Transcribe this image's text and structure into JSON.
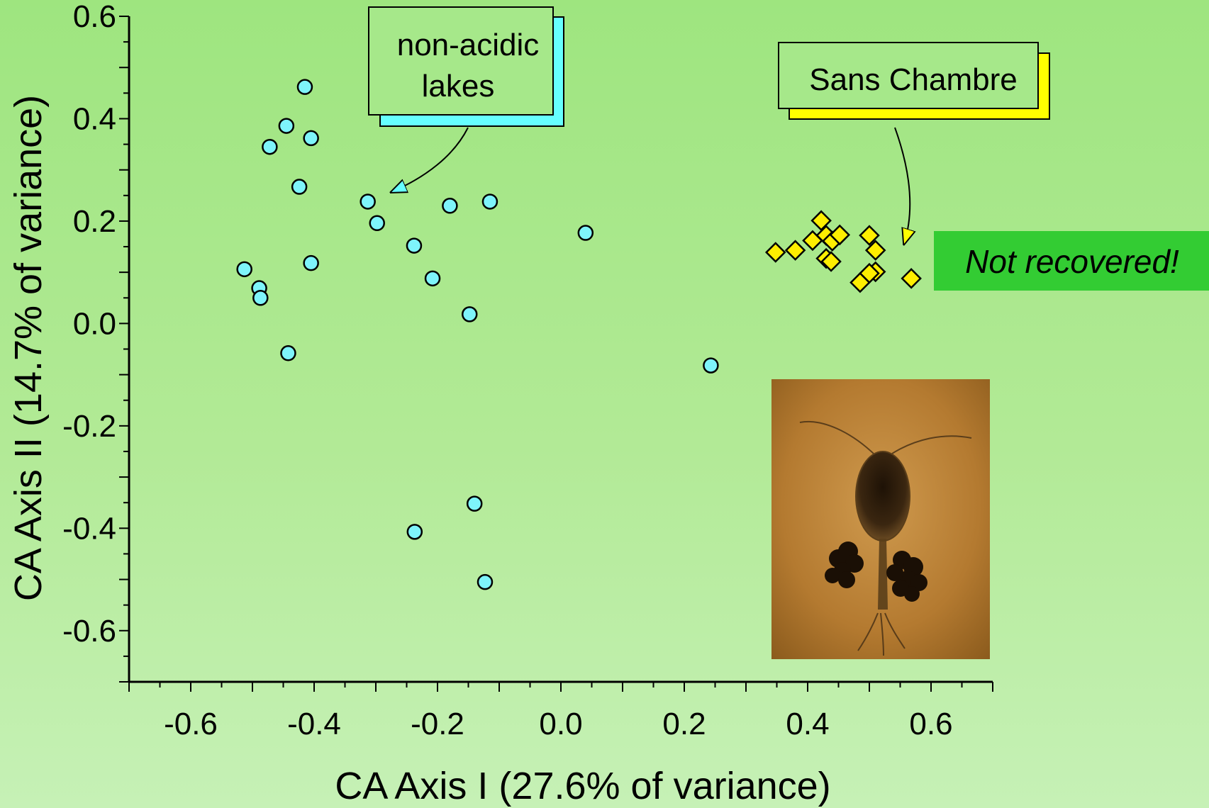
{
  "chart_data": {
    "type": "scatter",
    "xlabel": "CA Axis I (27.6% of variance)",
    "ylabel": "CA Axis II (14.7% of variance)",
    "xlim": [
      -0.7,
      0.7
    ],
    "ylim": [
      -0.7,
      0.6
    ],
    "x_ticks": [
      "-0.6",
      "-0.4",
      "-0.2",
      "0.0",
      "0.2",
      "0.4",
      "0.6"
    ],
    "x_tick_values": [
      -0.6,
      -0.4,
      -0.2,
      0.0,
      0.2,
      0.4,
      0.6
    ],
    "y_ticks": [
      "0.6",
      "0.4",
      "0.2",
      "0.0",
      "-0.2",
      "-0.4",
      "-0.6"
    ],
    "y_tick_values": [
      0.6,
      0.4,
      0.2,
      0.0,
      -0.2,
      -0.4,
      -0.6
    ],
    "grid": false,
    "series": [
      {
        "marker": "circle",
        "color": "#7ef4fb",
        "points": [
          [
            -0.415,
            0.462
          ],
          [
            -0.445,
            0.386
          ],
          [
            -0.405,
            0.362
          ],
          [
            -0.472,
            0.345
          ],
          [
            -0.424,
            0.267
          ],
          [
            -0.313,
            0.238
          ],
          [
            -0.298,
            0.196
          ],
          [
            -0.238,
            0.152
          ],
          [
            -0.18,
            0.23
          ],
          [
            -0.115,
            0.238
          ],
          [
            -0.208,
            0.088
          ],
          [
            -0.405,
            0.118
          ],
          [
            -0.513,
            0.106
          ],
          [
            -0.489,
            0.069
          ],
          [
            -0.487,
            0.05
          ],
          [
            -0.148,
            0.018
          ],
          [
            -0.442,
            -0.058
          ],
          [
            0.04,
            0.177
          ],
          [
            0.243,
            -0.082
          ],
          [
            -0.14,
            -0.352
          ],
          [
            -0.237,
            -0.407
          ],
          [
            -0.123,
            -0.505
          ]
        ]
      },
      {
        "marker": "diamond",
        "color": "#ffee00",
        "points": [
          [
            0.348,
            0.139
          ],
          [
            0.38,
            0.143
          ],
          [
            0.408,
            0.162
          ],
          [
            0.422,
            0.201
          ],
          [
            0.43,
            0.172
          ],
          [
            0.44,
            0.161
          ],
          [
            0.452,
            0.173
          ],
          [
            0.43,
            0.127
          ],
          [
            0.438,
            0.121
          ],
          [
            0.5,
            0.172
          ],
          [
            0.51,
            0.143
          ],
          [
            0.51,
            0.101
          ],
          [
            0.5,
            0.098
          ],
          [
            0.485,
            0.08
          ],
          [
            0.568,
            0.088
          ]
        ]
      }
    ],
    "annotations": [
      {
        "text_lines": [
          "non-acidic",
          "lakes"
        ],
        "color": "#66ffff",
        "points_to": [
          -0.28,
          0.257
        ]
      },
      {
        "text_lines": [
          "Sans Chambre"
        ],
        "color": "#ffff00",
        "points_to": [
          0.555,
          0.157
        ]
      }
    ],
    "badge": {
      "text": "Not recovered!",
      "color": "#33cc33"
    }
  },
  "photo": {
    "subject": "copepod-photo"
  }
}
